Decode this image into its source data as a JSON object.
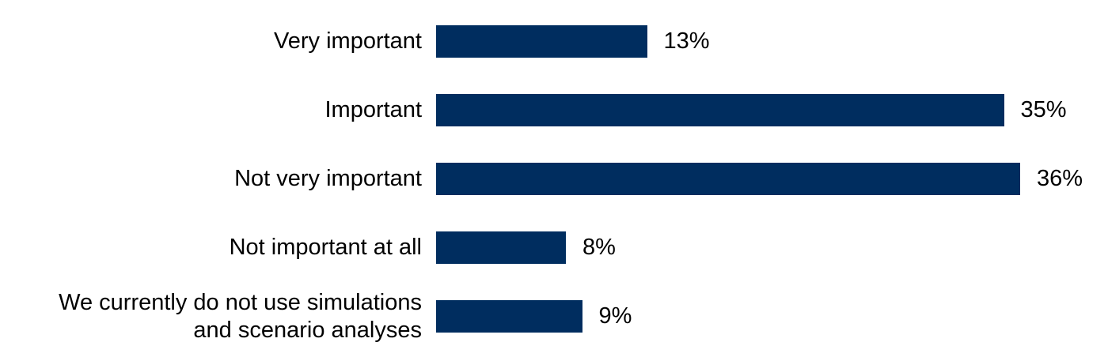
{
  "chart_data": {
    "type": "bar",
    "orientation": "horizontal",
    "title": "",
    "xlabel": "",
    "ylabel": "",
    "categories": [
      "Very important",
      "Important",
      "Not very important",
      "Not important at all",
      "We currently do not use simulations\nand scenario analyses"
    ],
    "values": [
      13,
      35,
      36,
      8,
      9
    ],
    "value_labels": [
      "13%",
      "35%",
      "36%",
      "8%",
      "9%"
    ],
    "xlim": [
      0,
      40
    ],
    "grid": false,
    "legend": "none",
    "axis_lines": "none",
    "bar_color": "#002d5f",
    "text_color": "#000000",
    "background_color": "#ffffff"
  }
}
